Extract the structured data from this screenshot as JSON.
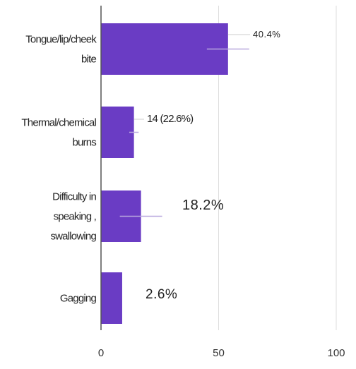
{
  "chart_data": {
    "type": "bar",
    "orientation": "horizontal",
    "categories": [
      [
        "Tongue/lip/cheek",
        "bite"
      ],
      [
        "Thermal/chemical",
        "burns"
      ],
      [
        "Difficulty in",
        "speaking ,",
        "swallowing"
      ],
      [
        "Gagging"
      ]
    ],
    "values": [
      54,
      14,
      17,
      9
    ],
    "data_labels": [
      "40.4%",
      "14 (22.6%)",
      "18.2%",
      "2.6%"
    ],
    "xlim": [
      0,
      100
    ],
    "xticks": [
      "0",
      "50",
      "100"
    ],
    "bar_color": "#6a3cc4",
    "grid": false,
    "legend": false
  }
}
